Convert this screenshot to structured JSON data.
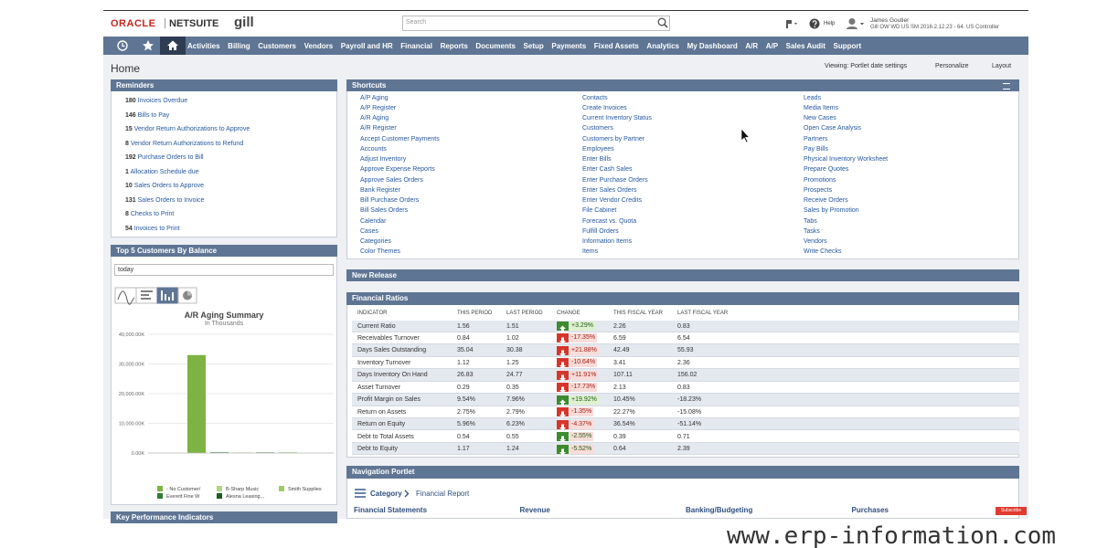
{
  "header": {
    "brand": "ORACLE",
    "product": "NETSUITE",
    "company": "gill",
    "search_placeholder": "Search",
    "help": "Help",
    "user_name": "James Goutier",
    "user_role": "Gill OW WD US SM 2016.2.12.23 - 64. US Controller"
  },
  "nav": [
    "Activities",
    "Billing",
    "Customers",
    "Vendors",
    "Payroll and HR",
    "Financial",
    "Reports",
    "Documents",
    "Setup",
    "Payments",
    "Fixed Assets",
    "Analytics",
    "My Dashboard",
    "A/R",
    "A/P",
    "Sales Audit",
    "Support"
  ],
  "page": {
    "title": "Home",
    "viewing": "Viewing: Portlet date settings",
    "personalize": "Personalize",
    "layout": "Layout"
  },
  "reminders": {
    "title": "Reminders",
    "items": [
      {
        "count": 180,
        "label": "Invoices Overdue"
      },
      {
        "count": 146,
        "label": "Bills to Pay"
      },
      {
        "count": 15,
        "label": "Vendor Return Authorizations to Approve"
      },
      {
        "count": 8,
        "label": "Vendor Return Authorizations to Refund"
      },
      {
        "count": 192,
        "label": "Purchase Orders to Bill"
      },
      {
        "count": 1,
        "label": "Allocation Schedule due"
      },
      {
        "count": 10,
        "label": "Sales Orders to Approve"
      },
      {
        "count": 131,
        "label": "Sales Orders to Invoice"
      },
      {
        "count": 8,
        "label": "Checks to Print"
      },
      {
        "count": 54,
        "label": "Invoices to Print"
      }
    ]
  },
  "top_customers": {
    "title": "Top 5 Customers By Balance",
    "period": "today"
  },
  "chart_data": {
    "type": "bar",
    "title": "A/R Aging Summary",
    "subtitle": "In Thousands",
    "ylim": [
      0,
      40000
    ],
    "yticks": [
      {
        "value": 0,
        "label": "0.00K"
      },
      {
        "value": 10000,
        "label": "10,000.00K"
      },
      {
        "value": 20000,
        "label": "20,000.00K"
      },
      {
        "value": 30000,
        "label": "30,000.00K"
      },
      {
        "value": 40000,
        "label": "40,000.00K"
      }
    ],
    "grid": true,
    "series": [
      {
        "name": "- No Customer/",
        "color": "#7cb342",
        "values": [
          33000
        ]
      },
      {
        "name": "Everett Fine W",
        "color": "#2e7d32",
        "values": [
          250
        ]
      },
      {
        "name": "B-Sharp Music",
        "color": "#aed581",
        "values": [
          200
        ]
      },
      {
        "name": "Alesna Leasing...",
        "color": "#1b5e20",
        "values": [
          200
        ]
      },
      {
        "name": "Smith Supplies",
        "color": "#9ccc65",
        "values": [
          250
        ]
      }
    ]
  },
  "kpi": {
    "title": "Key Performance Indicators"
  },
  "shortcuts": {
    "title": "Shortcuts",
    "columns": [
      [
        "A/P Aging",
        "A/P Register",
        "A/R Aging",
        "A/R Register",
        "Accept Customer Payments",
        "Accounts",
        "Adjust Inventory",
        "Approve Expense Reports",
        "Approve Sales Orders",
        "Bank Register",
        "Bill Purchase Orders",
        "Bill Sales Orders",
        "Calendar",
        "Cases",
        "Categories",
        "Color Themes"
      ],
      [
        "Contacts",
        "Create Invoices",
        "Current Inventory Status",
        "Customers",
        "Customers by Partner",
        "Employees",
        "Enter Bills",
        "Enter Cash Sales",
        "Enter Purchase Orders",
        "Enter Sales Orders",
        "Enter Vendor Credits",
        "File Cabinet",
        "Forecast vs. Quota",
        "Fulfill Orders",
        "Information Items",
        "Items"
      ],
      [
        "Leads",
        "Media Items",
        "New Cases",
        "Open Case Analysis",
        "Partners",
        "Pay Bills",
        "Physical Inventory Worksheet",
        "Prepare Quotes",
        "Promotions",
        "Prospects",
        "Receive Orders",
        "Sales by Promotion",
        "Tabs",
        "Tasks",
        "Vendors",
        "Write Checks"
      ]
    ]
  },
  "new_release": {
    "title": "New Release"
  },
  "financial_ratios": {
    "title": "Financial Ratios",
    "headers": [
      "INDICATOR",
      "THIS PERIOD",
      "LAST PERIOD",
      "CHANGE",
      "THIS FISCAL YEAR",
      "LAST FISCAL YEAR"
    ],
    "rows": [
      {
        "indicator": "Current Ratio",
        "this_period": "1.56",
        "last_period": "1.51",
        "arrow": "up",
        "arrow_color": "#3d8b2f",
        "change": "+3.29%",
        "this_fiscal": "2.26",
        "last_fiscal": "0.83"
      },
      {
        "indicator": "Receivables Turnover",
        "this_period": "0.84",
        "last_period": "1.02",
        "arrow": "down",
        "arrow_color": "#d5362b",
        "change": "-17.35%",
        "this_fiscal": "6.59",
        "last_fiscal": "6.54"
      },
      {
        "indicator": "Days Sales Outstanding",
        "this_period": "35.04",
        "last_period": "30.38",
        "arrow": "down",
        "arrow_color": "#d5362b",
        "change": "+21.88%",
        "this_fiscal": "42.49",
        "last_fiscal": "55.93"
      },
      {
        "indicator": "Inventory Turnover",
        "this_period": "1.12",
        "last_period": "1.25",
        "arrow": "down",
        "arrow_color": "#d5362b",
        "change": "-10.64%",
        "this_fiscal": "3.41",
        "last_fiscal": "2.36"
      },
      {
        "indicator": "Days Inventory On Hand",
        "this_period": "26.83",
        "last_period": "24.77",
        "arrow": "down",
        "arrow_color": "#d5362b",
        "change": "+11.91%",
        "this_fiscal": "107.11",
        "last_fiscal": "156.02"
      },
      {
        "indicator": "Asset Turnover",
        "this_period": "0.29",
        "last_period": "0.35",
        "arrow": "down",
        "arrow_color": "#d5362b",
        "change": "-17.73%",
        "this_fiscal": "2.13",
        "last_fiscal": "0.83"
      },
      {
        "indicator": "Profit Margin on Sales",
        "this_period": "9.54%",
        "last_period": "7.96%",
        "arrow": "up",
        "arrow_color": "#3d8b2f",
        "change": "+19.92%",
        "this_fiscal": "10.45%",
        "last_fiscal": "-18.23%"
      },
      {
        "indicator": "Return on Assets",
        "this_period": "2.75%",
        "last_period": "2.79%",
        "arrow": "down",
        "arrow_color": "#d5362b",
        "change": "-1.35%",
        "this_fiscal": "22.27%",
        "last_fiscal": "-15.08%"
      },
      {
        "indicator": "Return on Equity",
        "this_period": "5.96%",
        "last_period": "6.23%",
        "arrow": "down",
        "arrow_color": "#d5362b",
        "change": "-4.37%",
        "this_fiscal": "36.54%",
        "last_fiscal": "-51.14%"
      },
      {
        "indicator": "Debt to Total Assets",
        "this_period": "0.54",
        "last_period": "0.55",
        "arrow": "down",
        "arrow_color": "#3d8b2f",
        "change": "-2.55%",
        "this_fiscal": "0.39",
        "last_fiscal": "0.71"
      },
      {
        "indicator": "Debt to Equity",
        "this_period": "1.17",
        "last_period": "1.24",
        "arrow": "down",
        "arrow_color": "#3d8b2f",
        "change": "-5.52%",
        "this_fiscal": "0.64",
        "last_fiscal": "2.39"
      }
    ]
  },
  "navigation_portlet": {
    "title": "Navigation Portlet",
    "breadcrumb": [
      "Category",
      "Financial Report"
    ],
    "columns": [
      "Financial Statements",
      "Revenue",
      "Banking/Budgeting",
      "Purchases"
    ]
  },
  "subscribe": "Subscribe",
  "watermark": "www.erp-information.com"
}
